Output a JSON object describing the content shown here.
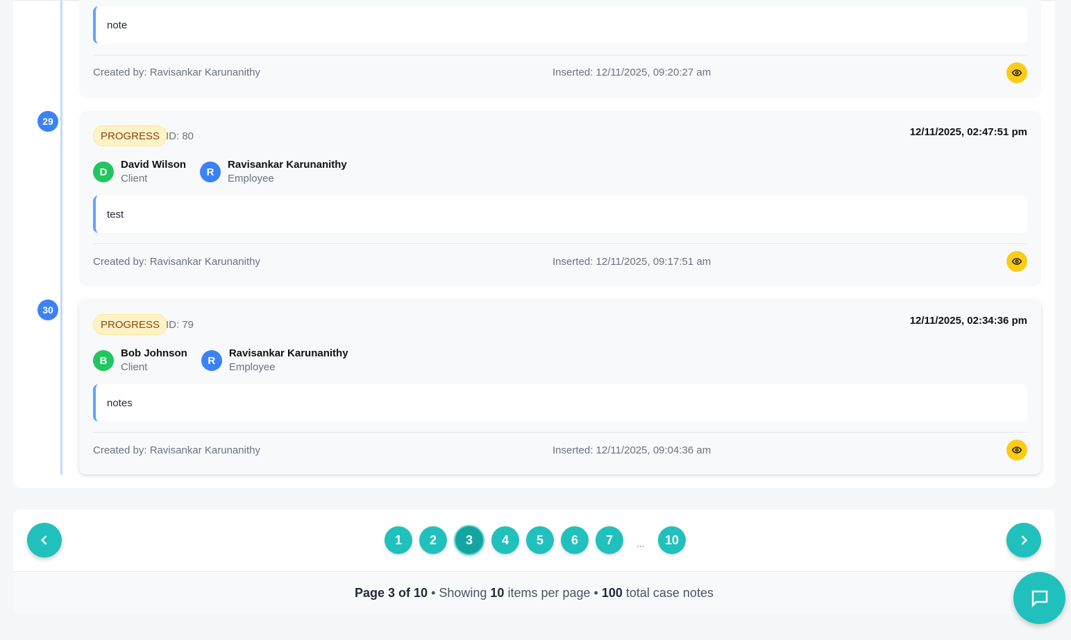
{
  "entries": [
    {
      "note": "note",
      "created_by": "Created by: Ravisankar Karunanithy",
      "inserted": "Inserted: 12/11/2025, 09:20:27 am"
    },
    {
      "index": "29",
      "type": "PROGRESS",
      "id": "ID: 80",
      "date": "12/11/2025, 02:47:51 pm",
      "client": {
        "initial": "D",
        "name": "David Wilson",
        "role": "Client",
        "color": "#22c55e"
      },
      "employee": {
        "initial": "R",
        "name": "Ravisankar Karunanithy",
        "role": "Employee",
        "color": "#3b82f6"
      },
      "note": "test",
      "created_by": "Created by: Ravisankar Karunanithy",
      "inserted": "Inserted: 12/11/2025, 09:17:51 am"
    },
    {
      "index": "30",
      "type": "PROGRESS",
      "id": "ID: 79",
      "date": "12/11/2025, 02:34:36 pm",
      "client": {
        "initial": "B",
        "name": "Bob Johnson",
        "role": "Client",
        "color": "#22c55e"
      },
      "employee": {
        "initial": "R",
        "name": "Ravisankar Karunanithy",
        "role": "Employee",
        "color": "#3b82f6"
      },
      "note": "notes",
      "created_by": "Created by: Ravisankar Karunanithy",
      "inserted": "Inserted: 12/11/2025, 09:04:36 am"
    }
  ],
  "pagination": {
    "pages": [
      "1",
      "2",
      "3",
      "4",
      "5",
      "6",
      "7"
    ],
    "ellipsis": "...",
    "last": "10",
    "current": "3",
    "summary": {
      "page_label": "Page 3 of 10",
      "sep1": " • Showing ",
      "per_page": "10",
      "per_page_suffix": " items per page • ",
      "total": "100",
      "total_suffix": " total case notes"
    }
  },
  "colors": {
    "accent": "#20c0bd",
    "timeline": "#3b82f6",
    "eye": "#facc15"
  }
}
